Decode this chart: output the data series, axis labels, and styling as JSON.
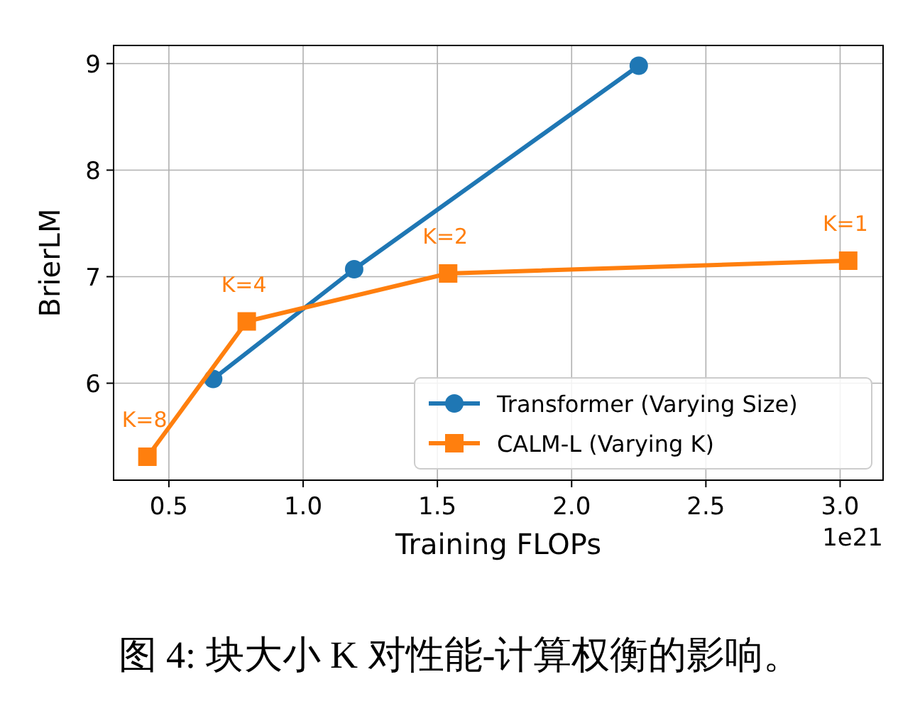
{
  "chart_data": {
    "type": "line",
    "xlabel": "Training FLOPs",
    "ylabel": "BrierLM",
    "series": [
      {
        "name": "Transformer (Varying Size)",
        "color": "#1f77b4",
        "marker": "circle",
        "x": [
          0.665,
          1.19,
          2.25
        ],
        "values": [
          6.04,
          7.07,
          8.98
        ]
      },
      {
        "name": "CALM-L (Varying K)",
        "color": "#ff7f0e",
        "marker": "square",
        "x": [
          0.42,
          0.79,
          1.54,
          3.03
        ],
        "values": [
          5.31,
          6.58,
          7.03,
          7.15
        ]
      }
    ],
    "xlim": [
      0.294,
      3.16
    ],
    "ylim": [
      5.09,
      9.17
    ],
    "xticks": [
      0.5,
      {
        "value": 1,
        "label": "1.0"
      },
      1.5,
      {
        "value": 2,
        "label": "2.0"
      },
      2.5,
      {
        "value": 3,
        "label": "3.0"
      }
    ],
    "yticks": [
      6,
      7,
      8,
      9
    ],
    "grid": true,
    "legend": "bottom right",
    "annotations": [
      {
        "text": "K=8",
        "x": 0.42,
        "y": 5.31
      },
      {
        "text": "K=4",
        "x": 0.79,
        "y": 6.58
      },
      {
        "text": "K=2",
        "x": 1.54,
        "y": 7.03
      },
      {
        "text": "K=1",
        "x": 3.03,
        "y": 7.15
      },
      "1e21",
      "图 4: 块大小 K 对性能-计算权衡的影响。"
    ]
  }
}
